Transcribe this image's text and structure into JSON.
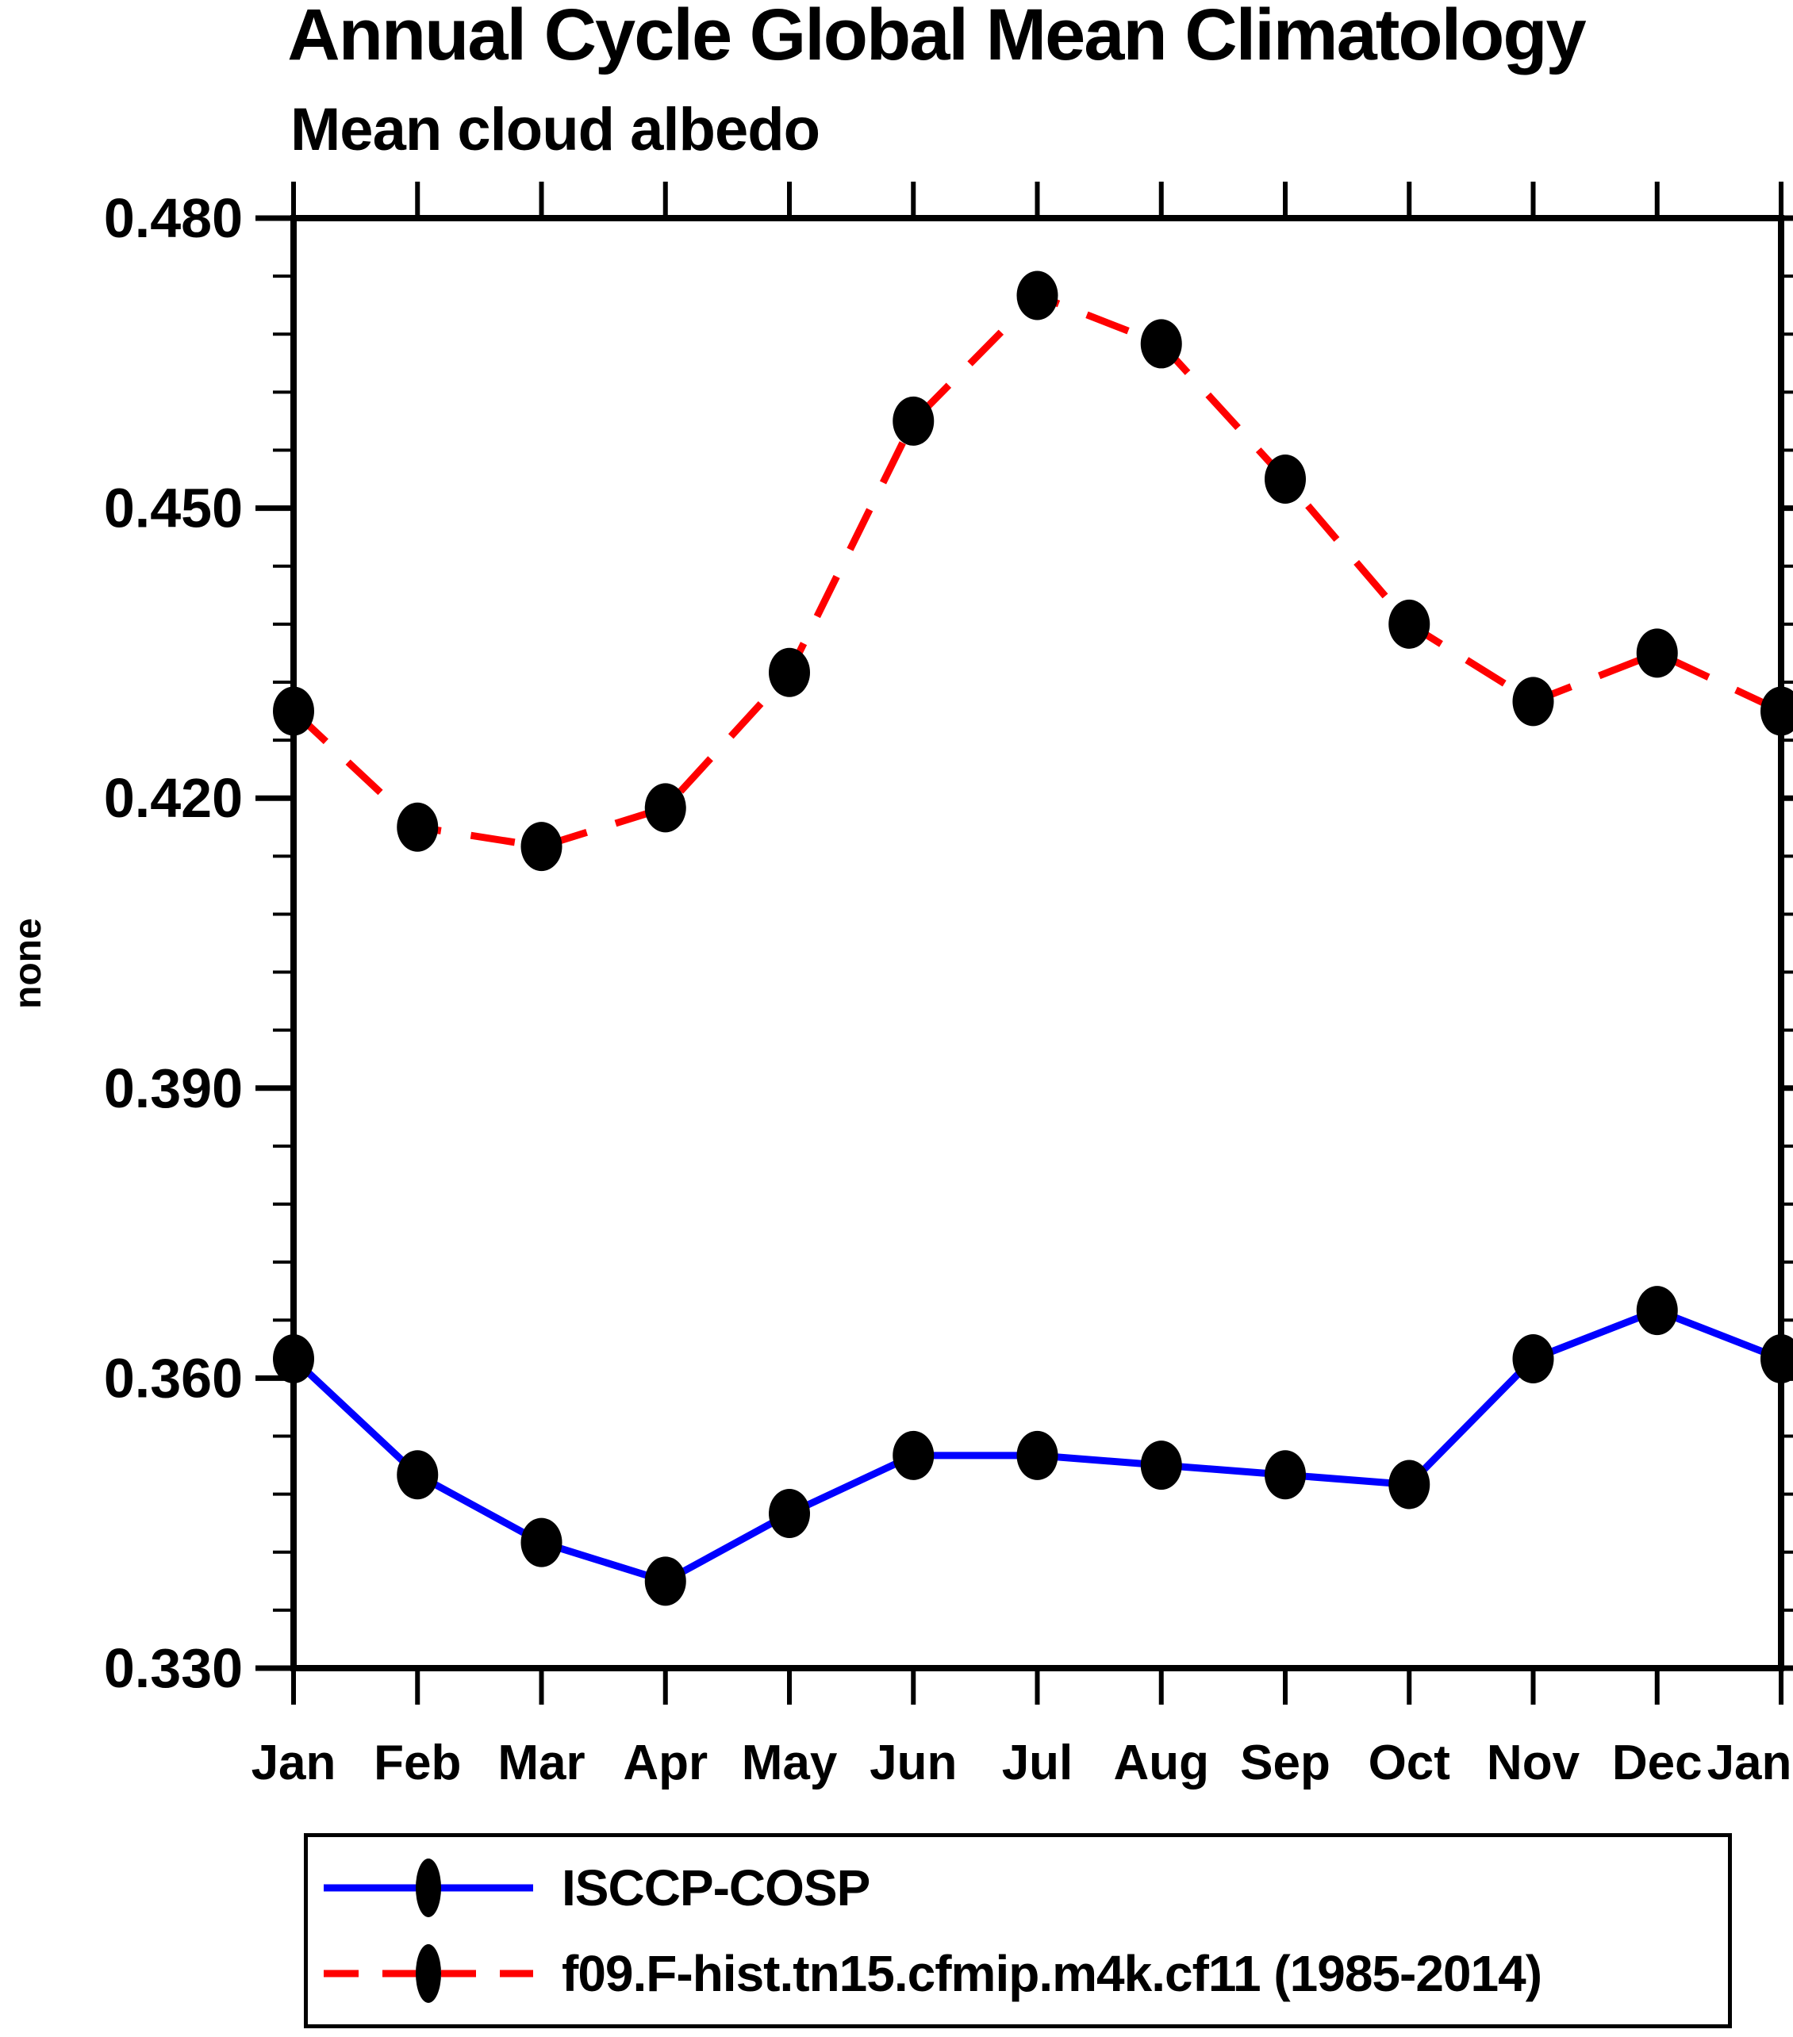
{
  "page": {
    "title": "Annual Cycle Global Mean Climatology",
    "subtitle": "Mean cloud albedo",
    "y_axis_label": "none"
  },
  "legend": {
    "entries": [
      {
        "label": "ISCCP-COSP",
        "color": "#0000ff",
        "line_style": "solid",
        "marker": "filled-circle"
      },
      {
        "label": "f09.F-hist.tn15.cfmip.m4k.cf11 (1985-2014)",
        "color": "#ff0000",
        "line_style": "dashed",
        "marker": "filled-circle"
      }
    ]
  },
  "chart_data": {
    "type": "line",
    "title": "Annual Cycle Global Mean Climatology",
    "subtitle": "Mean cloud albedo",
    "xlabel": "",
    "ylabel": "none",
    "x": [
      "Jan",
      "Feb",
      "Mar",
      "Apr",
      "May",
      "Jun",
      "Jul",
      "Aug",
      "Sep",
      "Oct",
      "Nov",
      "Dec",
      "Jan"
    ],
    "ylim": [
      0.33,
      0.48
    ],
    "ytick_major": 0.03,
    "ytick_minor": 0.006,
    "ytick_labels": [
      "0.330",
      "0.360",
      "0.390",
      "0.420",
      "0.450",
      "0.480"
    ],
    "grid": false,
    "legend_position": "below",
    "marker_color": "#000000",
    "series": [
      {
        "name": "ISCCP-COSP",
        "color": "#0000ff",
        "style": "solid",
        "values": [
          0.362,
          0.35,
          0.343,
          0.339,
          0.346,
          0.352,
          0.352,
          0.351,
          0.35,
          0.349,
          0.362,
          0.367,
          0.362
        ]
      },
      {
        "name": "f09.F-hist.tn15.cfmip.m4k.cf11 (1985-2014)",
        "color": "#ff0000",
        "style": "dashed",
        "values": [
          0.429,
          0.417,
          0.415,
          0.419,
          0.433,
          0.459,
          0.472,
          0.467,
          0.453,
          0.438,
          0.43,
          0.435,
          0.429
        ]
      }
    ]
  }
}
